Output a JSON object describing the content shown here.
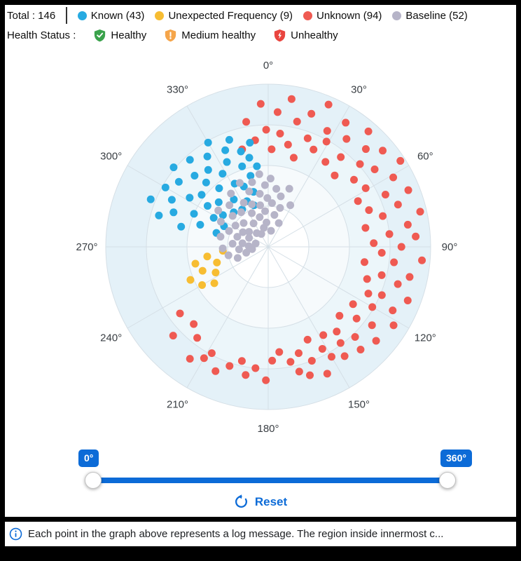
{
  "header": {
    "total_label": "Total : 146",
    "legend": [
      {
        "label": "Known (43)",
        "color": "#27aae1"
      },
      {
        "label": "Unexpected Frequency (9)",
        "color": "#f7bd32"
      },
      {
        "label": "Unknown (94)",
        "color": "#ef5a52"
      },
      {
        "label": "Baseline (52)",
        "color": "#b6b4c8"
      }
    ],
    "health_label": "Health Status :",
    "health": [
      {
        "label": "Healthy",
        "color": "#3aa24b"
      },
      {
        "label": "Medium healthy",
        "color": "#f5a54a"
      },
      {
        "label": "Unhealthy",
        "color": "#e9453f"
      }
    ]
  },
  "chart_data": {
    "type": "scatter",
    "projection": "polar",
    "angle_unit": "degrees",
    "zero_at": "top",
    "angle_direction": "clockwise",
    "angle_labels": [
      "0°",
      "30°",
      "60°",
      "90°",
      "120°",
      "150°",
      "180°",
      "210°",
      "240°",
      "270°",
      "300°",
      "330°"
    ],
    "radial_rings": [
      0.25,
      0.5,
      0.75,
      1.0
    ],
    "radial_range": [
      0,
      1
    ],
    "legend_position": "top",
    "grid": true,
    "series": [
      {
        "name": "Unknown",
        "count": 94,
        "color": "#ef5a52",
        "points": [
          [
            345,
            0.62
          ],
          [
            350,
            0.78
          ],
          [
            353,
            0.66
          ],
          [
            357,
            0.88
          ],
          [
            359,
            0.72
          ],
          [
            2,
            0.6
          ],
          [
            4,
            0.83
          ],
          [
            6,
            0.7
          ],
          [
            9,
            0.92
          ],
          [
            11,
            0.64
          ],
          [
            13,
            0.79
          ],
          [
            16,
            0.57
          ],
          [
            18,
            0.86
          ],
          [
            20,
            0.71
          ],
          [
            23,
            0.95
          ],
          [
            25,
            0.66
          ],
          [
            27,
            0.8
          ],
          [
            29,
            0.74
          ],
          [
            32,
            0.9
          ],
          [
            34,
            0.63
          ],
          [
            36,
            0.82
          ],
          [
            39,
            0.71
          ],
          [
            41,
            0.94
          ],
          [
            43,
            0.6
          ],
          [
            45,
            0.85
          ],
          [
            48,
            0.76
          ],
          [
            50,
            0.92
          ],
          [
            52,
            0.67
          ],
          [
            54,
            0.81
          ],
          [
            57,
            0.97
          ],
          [
            59,
            0.7
          ],
          [
            61,
            0.88
          ],
          [
            63,
            0.62
          ],
          [
            66,
            0.79
          ],
          [
            68,
            0.93
          ],
          [
            70,
            0.66
          ],
          [
            72,
            0.84
          ],
          [
            75,
            0.73
          ],
          [
            77,
            0.96
          ],
          [
            79,
            0.61
          ],
          [
            81,
            0.87
          ],
          [
            84,
            0.75
          ],
          [
            86,
            0.91
          ],
          [
            88,
            0.65
          ],
          [
            90,
            0.82
          ],
          [
            93,
            0.7
          ],
          [
            95,
            0.95
          ],
          [
            97,
            0.78
          ],
          [
            99,
            0.6
          ],
          [
            102,
            0.89
          ],
          [
            104,
            0.72
          ],
          [
            106,
            0.83
          ],
          [
            108,
            0.64
          ],
          [
            111,
            0.92
          ],
          [
            113,
            0.76
          ],
          [
            115,
            0.68
          ],
          [
            117,
            0.86
          ],
          [
            120,
            0.74
          ],
          [
            122,
            0.91
          ],
          [
            124,
            0.63
          ],
          [
            127,
            0.8
          ],
          [
            129,
            0.7
          ],
          [
            131,
            0.88
          ],
          [
            134,
            0.61
          ],
          [
            136,
            0.77
          ],
          [
            138,
            0.85
          ],
          [
            141,
            0.67
          ],
          [
            143,
            0.74
          ],
          [
            145,
            0.82
          ],
          [
            148,
            0.64
          ],
          [
            150,
            0.78
          ],
          [
            152,
            0.71
          ],
          [
            155,
            0.86
          ],
          [
            157,
            0.62
          ],
          [
            159,
            0.75
          ],
          [
            162,
            0.83
          ],
          [
            164,
            0.68
          ],
          [
            166,
            0.79
          ],
          [
            169,
            0.72
          ],
          [
            174,
            0.65
          ],
          [
            178,
            0.7
          ],
          [
            181,
            0.82
          ],
          [
            186,
            0.75
          ],
          [
            190,
            0.8
          ],
          [
            193,
            0.72
          ],
          [
            198,
            0.77
          ],
          [
            203,
            0.83
          ],
          [
            208,
            0.74
          ],
          [
            210,
            0.79
          ],
          [
            215,
            0.84
          ],
          [
            218,
            0.71
          ],
          [
            224,
            0.66
          ],
          [
            227,
            0.8
          ],
          [
            233,
            0.68
          ]
        ]
      },
      {
        "name": "Known",
        "count": 43,
        "color": "#27aae1",
        "points": [
          [
            283,
            0.55
          ],
          [
            286,
            0.7
          ],
          [
            288,
            0.44
          ],
          [
            290,
            0.62
          ],
          [
            292,
            0.78
          ],
          [
            294,
            0.5
          ],
          [
            296,
            0.66
          ],
          [
            298,
            0.38
          ],
          [
            300,
            0.73
          ],
          [
            302,
            0.57
          ],
          [
            304,
            0.45
          ],
          [
            306,
            0.68
          ],
          [
            308,
            0.52
          ],
          [
            310,
            0.76
          ],
          [
            312,
            0.41
          ],
          [
            314,
            0.63
          ],
          [
            316,
            0.55
          ],
          [
            318,
            0.72
          ],
          [
            320,
            0.47
          ],
          [
            322,
            0.6
          ],
          [
            324,
            0.36
          ],
          [
            326,
            0.67
          ],
          [
            328,
            0.53
          ],
          [
            330,
            0.74
          ],
          [
            332,
            0.44
          ],
          [
            334,
            0.58
          ],
          [
            336,
            0.65
          ],
          [
            338,
            0.4
          ],
          [
            340,
            0.7
          ],
          [
            342,
            0.52
          ],
          [
            344,
            0.61
          ],
          [
            346,
            0.45
          ],
          [
            348,
            0.56
          ],
          [
            350,
            0.65
          ],
          [
            352,
            0.5
          ],
          [
            285,
            0.33
          ],
          [
            295,
            0.3
          ],
          [
            305,
            0.34
          ],
          [
            315,
            0.3
          ],
          [
            325,
            0.28
          ],
          [
            335,
            0.31
          ],
          [
            345,
            0.35
          ],
          [
            341,
            0.27
          ]
        ]
      },
      {
        "name": "Unexpected Frequency",
        "count": 9,
        "color": "#f7bd32",
        "points": [
          [
            236,
            0.4
          ],
          [
            240,
            0.47
          ],
          [
            244,
            0.36
          ],
          [
            247,
            0.52
          ],
          [
            250,
            0.43
          ],
          [
            253,
            0.33
          ],
          [
            257,
            0.46
          ],
          [
            261,
            0.38
          ],
          [
            265,
            0.28
          ]
        ]
      },
      {
        "name": "Baseline",
        "count": 52,
        "color": "#b6b4c8",
        "points": [
          [
            250,
            0.2
          ],
          [
            255,
            0.14
          ],
          [
            258,
            0.25
          ],
          [
            262,
            0.1
          ],
          [
            265,
            0.18
          ],
          [
            268,
            0.28
          ],
          [
            272,
            0.12
          ],
          [
            275,
            0.22
          ],
          [
            278,
            0.16
          ],
          [
            282,
            0.3
          ],
          [
            285,
            0.08
          ],
          [
            288,
            0.2
          ],
          [
            292,
            0.26
          ],
          [
            295,
            0.13
          ],
          [
            298,
            0.33
          ],
          [
            300,
            0.18
          ],
          [
            303,
            0.24
          ],
          [
            306,
            0.38
          ],
          [
            308,
            0.15
          ],
          [
            311,
            0.29
          ],
          [
            314,
            0.21
          ],
          [
            317,
            0.35
          ],
          [
            320,
            0.11
          ],
          [
            322,
            0.27
          ],
          [
            325,
            0.4
          ],
          [
            328,
            0.17
          ],
          [
            331,
            0.31
          ],
          [
            334,
            0.23
          ],
          [
            336,
            0.43
          ],
          [
            339,
            0.28
          ],
          [
            341,
            0.36
          ],
          [
            344,
            0.19
          ],
          [
            346,
            0.41
          ],
          [
            349,
            0.26
          ],
          [
            351,
            0.33
          ],
          [
            353,
            0.45
          ],
          [
            355,
            0.22
          ],
          [
            357,
            0.38
          ],
          [
            359,
            0.3
          ],
          [
            2,
            0.42
          ],
          [
            5,
            0.27
          ],
          [
            8,
            0.36
          ],
          [
            11,
            0.2
          ],
          [
            14,
            0.32
          ],
          [
            17,
            0.25
          ],
          [
            20,
            0.38
          ],
          [
            24,
            0.16
          ],
          [
            28,
            0.29
          ],
          [
            332,
            0.09
          ],
          [
            347,
            0.12
          ],
          [
            356,
            0.15
          ],
          [
            10,
            0.1
          ]
        ]
      }
    ]
  },
  "slider": {
    "min_value": "0°",
    "max_value": "360°",
    "accent_color": "#0c6bd7"
  },
  "reset": {
    "label": "Reset"
  },
  "footer": {
    "info_text": "Each point in the graph above represents a log message. The region inside innermost c..."
  }
}
